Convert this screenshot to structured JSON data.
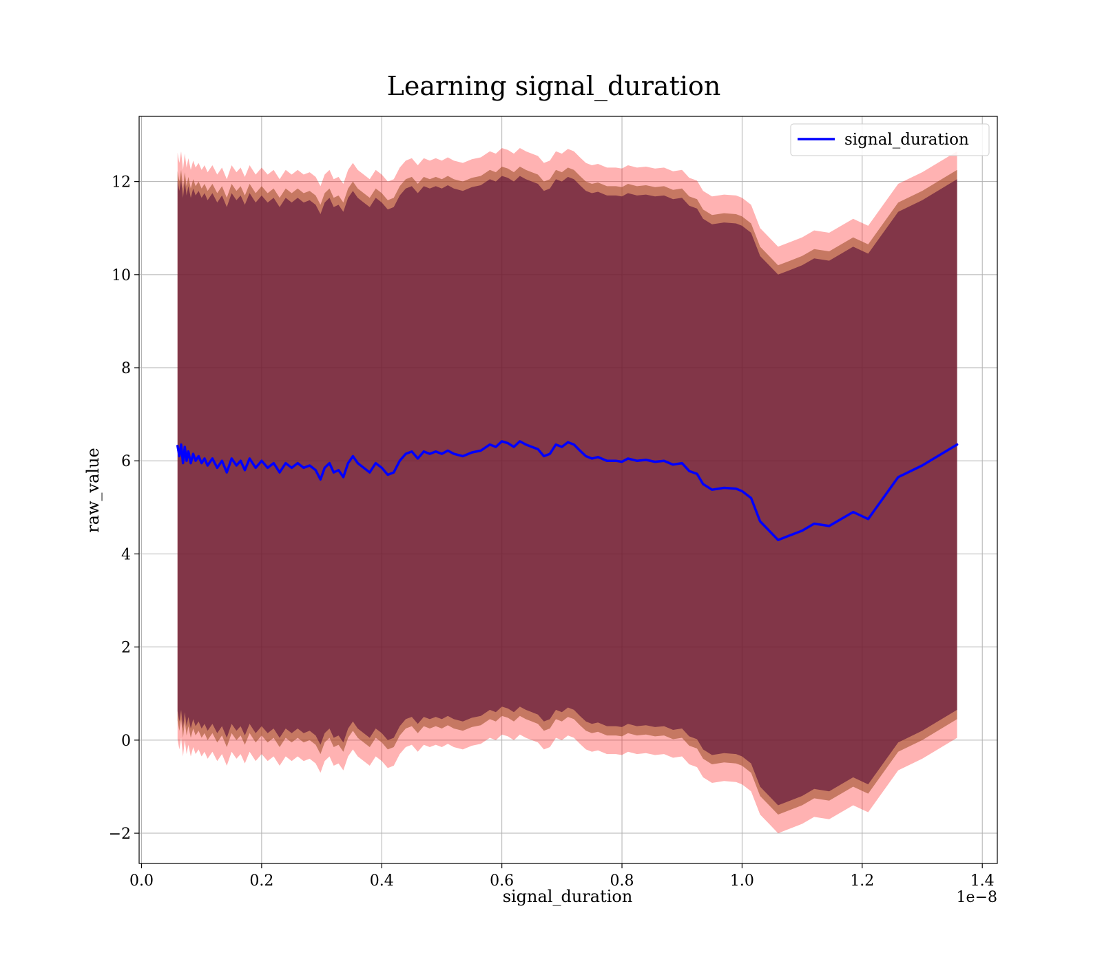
{
  "chart_data": {
    "type": "line",
    "title": "Learning signal_duration",
    "xlabel": "signal_duration",
    "ylabel": "raw_value",
    "x_offset_label": "1e−8",
    "xlim": [
      -0.004,
      1.425
    ],
    "ylim": [
      -2.65,
      13.4
    ],
    "grid": true,
    "legend": {
      "position": "top-right",
      "entries": [
        "signal_duration"
      ]
    },
    "x_ticks": [
      0.0,
      0.2,
      0.4,
      0.6,
      0.8,
      1.0,
      1.2,
      1.4
    ],
    "x_tick_labels": [
      "0.0",
      "0.2",
      "0.4",
      "0.6",
      "0.8",
      "1.0",
      "1.2",
      "1.4"
    ],
    "y_ticks": [
      -2,
      0,
      2,
      4,
      6,
      8,
      10,
      12
    ],
    "y_tick_labels": [
      "−2",
      "0",
      "2",
      "4",
      "6",
      "8",
      "10",
      "12"
    ],
    "band_half_widths": [
      6.3,
      5.9,
      5.7
    ],
    "colors": {
      "line": "#0000ff",
      "outer_band": "#ff0000",
      "middle_band": "#a0522d",
      "inner_band": "#4b0033"
    },
    "series": [
      {
        "name": "signal_duration",
        "x": [
          0.06,
          0.063,
          0.066,
          0.069,
          0.072,
          0.075,
          0.078,
          0.082,
          0.086,
          0.09,
          0.095,
          0.1,
          0.105,
          0.11,
          0.118,
          0.126,
          0.134,
          0.142,
          0.15,
          0.158,
          0.165,
          0.172,
          0.18,
          0.19,
          0.2,
          0.21,
          0.22,
          0.23,
          0.24,
          0.25,
          0.26,
          0.27,
          0.28,
          0.29,
          0.298,
          0.305,
          0.313,
          0.32,
          0.328,
          0.336,
          0.344,
          0.352,
          0.36,
          0.37,
          0.38,
          0.39,
          0.4,
          0.41,
          0.42,
          0.43,
          0.44,
          0.45,
          0.46,
          0.47,
          0.48,
          0.49,
          0.5,
          0.51,
          0.52,
          0.535,
          0.55,
          0.565,
          0.58,
          0.59,
          0.6,
          0.61,
          0.62,
          0.63,
          0.64,
          0.65,
          0.66,
          0.67,
          0.68,
          0.69,
          0.7,
          0.71,
          0.72,
          0.73,
          0.74,
          0.75,
          0.76,
          0.775,
          0.79,
          0.8,
          0.81,
          0.825,
          0.84,
          0.855,
          0.87,
          0.885,
          0.9,
          0.912,
          0.925,
          0.935,
          0.95,
          0.97,
          0.99,
          1.0,
          1.015,
          1.03,
          1.045,
          1.06,
          1.08,
          1.1,
          1.12,
          1.145,
          1.185,
          1.21,
          1.26,
          1.3,
          1.358
        ],
        "y": [
          6.32,
          6.1,
          6.35,
          5.95,
          6.3,
          6.0,
          6.2,
          5.95,
          6.15,
          6.0,
          6.1,
          5.95,
          6.05,
          5.9,
          6.05,
          5.85,
          6.0,
          5.75,
          6.05,
          5.9,
          6.0,
          5.8,
          6.05,
          5.85,
          6.0,
          5.85,
          5.95,
          5.75,
          5.95,
          5.85,
          5.95,
          5.85,
          5.9,
          5.8,
          5.6,
          5.85,
          5.95,
          5.75,
          5.8,
          5.65,
          5.95,
          6.1,
          5.95,
          5.85,
          5.75,
          5.95,
          5.85,
          5.7,
          5.75,
          6.0,
          6.15,
          6.2,
          6.05,
          6.2,
          6.15,
          6.2,
          6.15,
          6.22,
          6.15,
          6.1,
          6.18,
          6.22,
          6.35,
          6.3,
          6.42,
          6.38,
          6.3,
          6.42,
          6.35,
          6.3,
          6.25,
          6.1,
          6.15,
          6.35,
          6.3,
          6.4,
          6.35,
          6.22,
          6.1,
          6.05,
          6.08,
          6.0,
          6.0,
          5.98,
          6.05,
          6.0,
          6.02,
          5.98,
          6.0,
          5.92,
          5.95,
          5.78,
          5.72,
          5.5,
          5.38,
          5.42,
          5.4,
          5.35,
          5.2,
          4.7,
          4.5,
          4.3,
          4.4,
          4.5,
          4.65,
          4.6,
          4.9,
          4.75,
          5.65,
          5.9,
          6.35
        ]
      }
    ]
  }
}
